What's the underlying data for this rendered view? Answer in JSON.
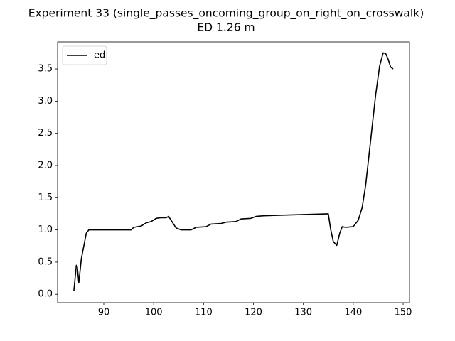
{
  "chart_data": {
    "type": "line",
    "title": "Experiment 33 (single_passes_oncoming_group_on_right_on_crosswalk)",
    "subtitle": "ED 1.26 m",
    "x": [
      84.0,
      84.5,
      84.7,
      85.0,
      85.5,
      86.5,
      87.0,
      95.5,
      96.0,
      97.5,
      98.5,
      99.5,
      100.5,
      101.5,
      102.5,
      103.0,
      103.5,
      104.5,
      105.5,
      107.5,
      108.5,
      110.5,
      111.5,
      113.5,
      114.5,
      116.5,
      117.5,
      119.5,
      120.5,
      122.0,
      135.0,
      135.5,
      136.0,
      136.7,
      137.3,
      137.8,
      138.5,
      140.0,
      141.0,
      141.8,
      142.5,
      143.5,
      144.5,
      145.3,
      146.0,
      146.5,
      147.0,
      147.5,
      148.0
    ],
    "series": [
      {
        "name": "ed",
        "color": "#000000",
        "values": [
          0.05,
          0.45,
          0.42,
          0.18,
          0.55,
          0.95,
          1.0,
          1.0,
          1.04,
          1.06,
          1.11,
          1.13,
          1.18,
          1.19,
          1.19,
          1.21,
          1.15,
          1.03,
          1.0,
          1.0,
          1.04,
          1.05,
          1.09,
          1.1,
          1.12,
          1.13,
          1.17,
          1.18,
          1.21,
          1.22,
          1.25,
          1.0,
          0.82,
          0.76,
          0.95,
          1.05,
          1.04,
          1.05,
          1.15,
          1.35,
          1.7,
          2.4,
          3.1,
          3.55,
          3.75,
          3.74,
          3.65,
          3.53,
          3.5
        ]
      }
    ],
    "xlim": [
      80.74,
      151.28
    ],
    "ylim": [
      -0.13,
      3.92
    ],
    "xticks": [
      90,
      100,
      110,
      120,
      130,
      140,
      150
    ],
    "yticks": [
      {
        "value": 0,
        "label": "0.0"
      },
      0.5,
      {
        "value": 1,
        "label": "1.0"
      },
      1.5,
      {
        "value": 2,
        "label": "2.0"
      },
      2.5,
      {
        "value": 3,
        "label": "3.0"
      },
      3.5
    ],
    "legend": "upper left"
  }
}
